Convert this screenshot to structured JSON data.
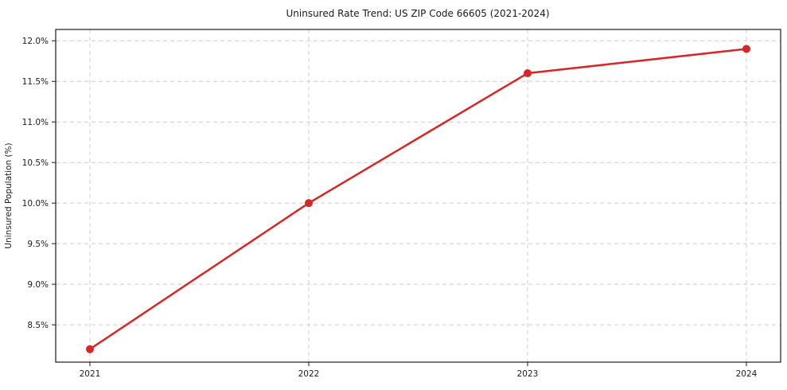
{
  "chart_data": {
    "type": "line",
    "title": "Uninsured Rate Trend: US ZIP Code 66605 (2021-2024)",
    "xlabel": "",
    "ylabel": "Uninsured Population (%)",
    "categories": [
      "2021",
      "2022",
      "2023",
      "2024"
    ],
    "series": [
      {
        "name": "Uninsured Population (%)",
        "values": [
          8.2,
          10.0,
          11.6,
          11.9
        ]
      }
    ],
    "y_tick_labels": [
      "8.5%",
      "9.0%",
      "9.5%",
      "10.0%",
      "10.5%",
      "11.0%",
      "11.5%",
      "12.0%"
    ],
    "y_tick_values": [
      8.5,
      9.0,
      9.5,
      10.0,
      10.5,
      11.0,
      11.5,
      12.0
    ],
    "ylim": [
      8.04,
      12.14
    ],
    "grid": "dashed-both-axes",
    "legend": "none",
    "colors": {
      "line": "#d62728",
      "marker": "#d62728",
      "grid": "#cccccc",
      "spine": "#1a1a1a",
      "text": "#1a1a1a",
      "background": "#ffffff"
    }
  }
}
